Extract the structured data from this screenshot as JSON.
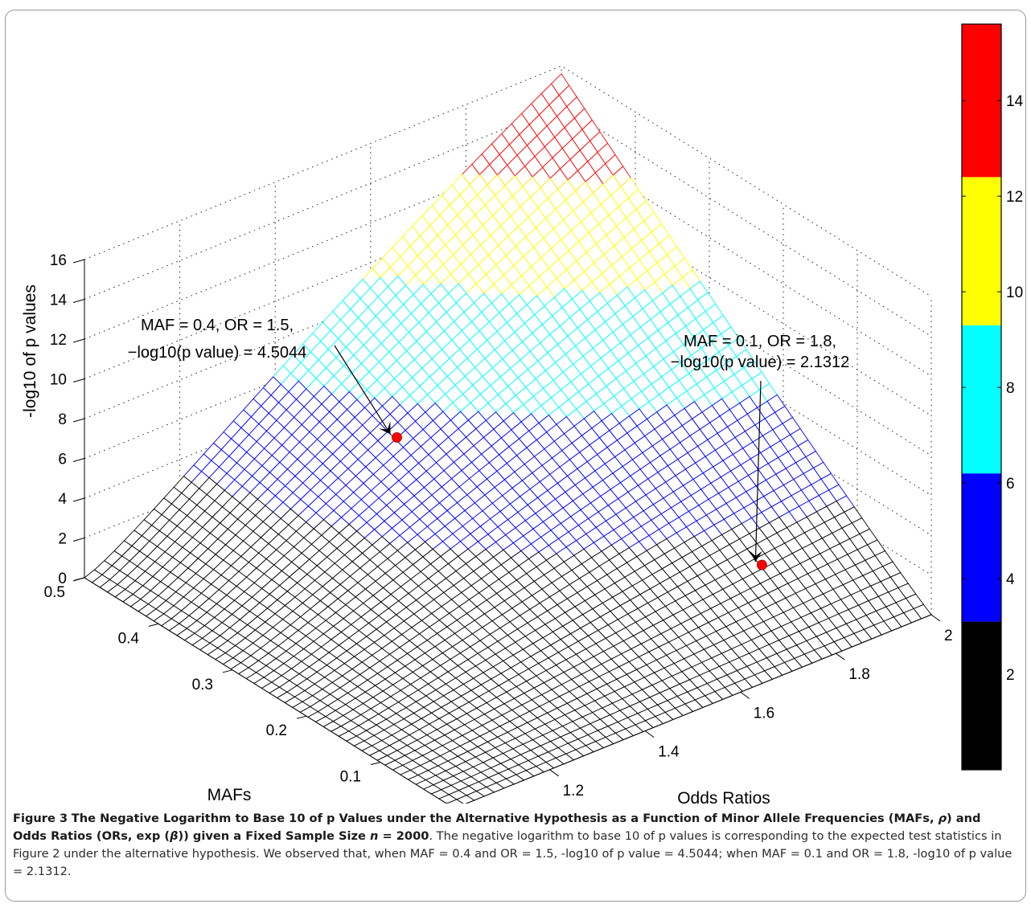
{
  "chart_data": {
    "type": "surface",
    "zlabel": "-log10 of p values",
    "xlabel": "MAFs",
    "ylabel": "Odds Ratios",
    "zlim": [
      0,
      16
    ],
    "xlim": [
      0,
      0.5
    ],
    "ylim": [
      1,
      2
    ],
    "z_ticks": [
      "0",
      "2",
      "4",
      "6",
      "8",
      "10",
      "12",
      "14",
      "16"
    ],
    "maf_ticks": [
      "0",
      "0.1",
      "0.2",
      "0.3",
      "0.4",
      "0.5"
    ],
    "or_ticks": [
      "1",
      "1.2",
      "1.4",
      "1.6",
      "1.8",
      "2"
    ],
    "colorbar": {
      "ticks": [
        "2",
        "4",
        "6",
        "8",
        "10",
        "12",
        "14"
      ],
      "range": [
        0,
        15.6
      ],
      "bands": [
        {
          "from": 0,
          "to": 3.1,
          "color": "#000000"
        },
        {
          "from": 3.1,
          "to": 6.2,
          "color": "#0000ff"
        },
        {
          "from": 6.2,
          "to": 9.3,
          "color": "#00ffff"
        },
        {
          "from": 9.3,
          "to": 12.4,
          "color": "#ffff00"
        },
        {
          "from": 12.4,
          "to": 15.6,
          "color": "#ff0000"
        }
      ]
    },
    "highlighted_points": [
      {
        "maf": 0.4,
        "or": 1.5,
        "neglog10p": 4.5044,
        "label_line1": "MAF = 0.4, OR = 1.5,",
        "label_line2": "−log10(p value) = 4.5044"
      },
      {
        "maf": 0.1,
        "or": 1.8,
        "neglog10p": 2.1312,
        "label_line1": "MAF = 0.1, OR = 1.8,",
        "label_line2": "−log10(p value) = 2.1312"
      }
    ],
    "max_value": 15.6,
    "grid": true
  },
  "caption": {
    "figure_label": "Figure 3",
    "bold_title_1": "The Negative Logarithm to Base 10 of p Values under the Alternative Hypothesis as a Function of Minor Allele Frequencies (MAFs, ",
    "rho": "ρ",
    "bold_title_2": ") and Odds Ratios (ORs, exp (",
    "beta": "β",
    "bold_title_3": ")) given a Fixed Sample Size ",
    "n_symbol": "n",
    "bold_title_4": " = 2000",
    "body": ". The negative logarithm to base 10 of p values is corresponding to the expected test statistics in Figure 2 under the alternative hypothesis. We observed that, when MAF = 0.4 and OR = 1.5, -log10 of p value = 4.5044; when MAF = 0.1 and OR = 1.8, -log10 of p value = 2.1312."
  }
}
